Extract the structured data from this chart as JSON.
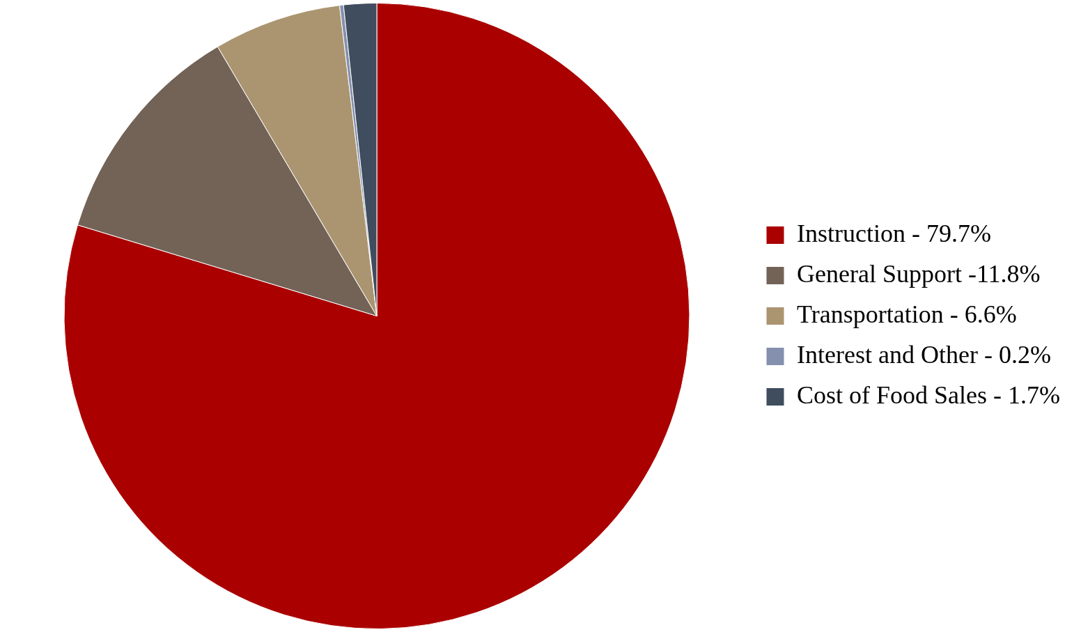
{
  "chart_data": {
    "type": "pie",
    "categories": [
      "Instruction - 79.7%",
      "General Support -11.8%",
      "Transportation - 6.6%",
      "Interest and Other - 0.2%",
      "Cost of Food Sales - 1.7%"
    ],
    "values": [
      79.7,
      11.8,
      6.6,
      0.2,
      1.7
    ],
    "colors": [
      "#aa0000",
      "#736357",
      "#ab9571",
      "#8490ad",
      "#3f4d5e"
    ],
    "legend": "right"
  }
}
